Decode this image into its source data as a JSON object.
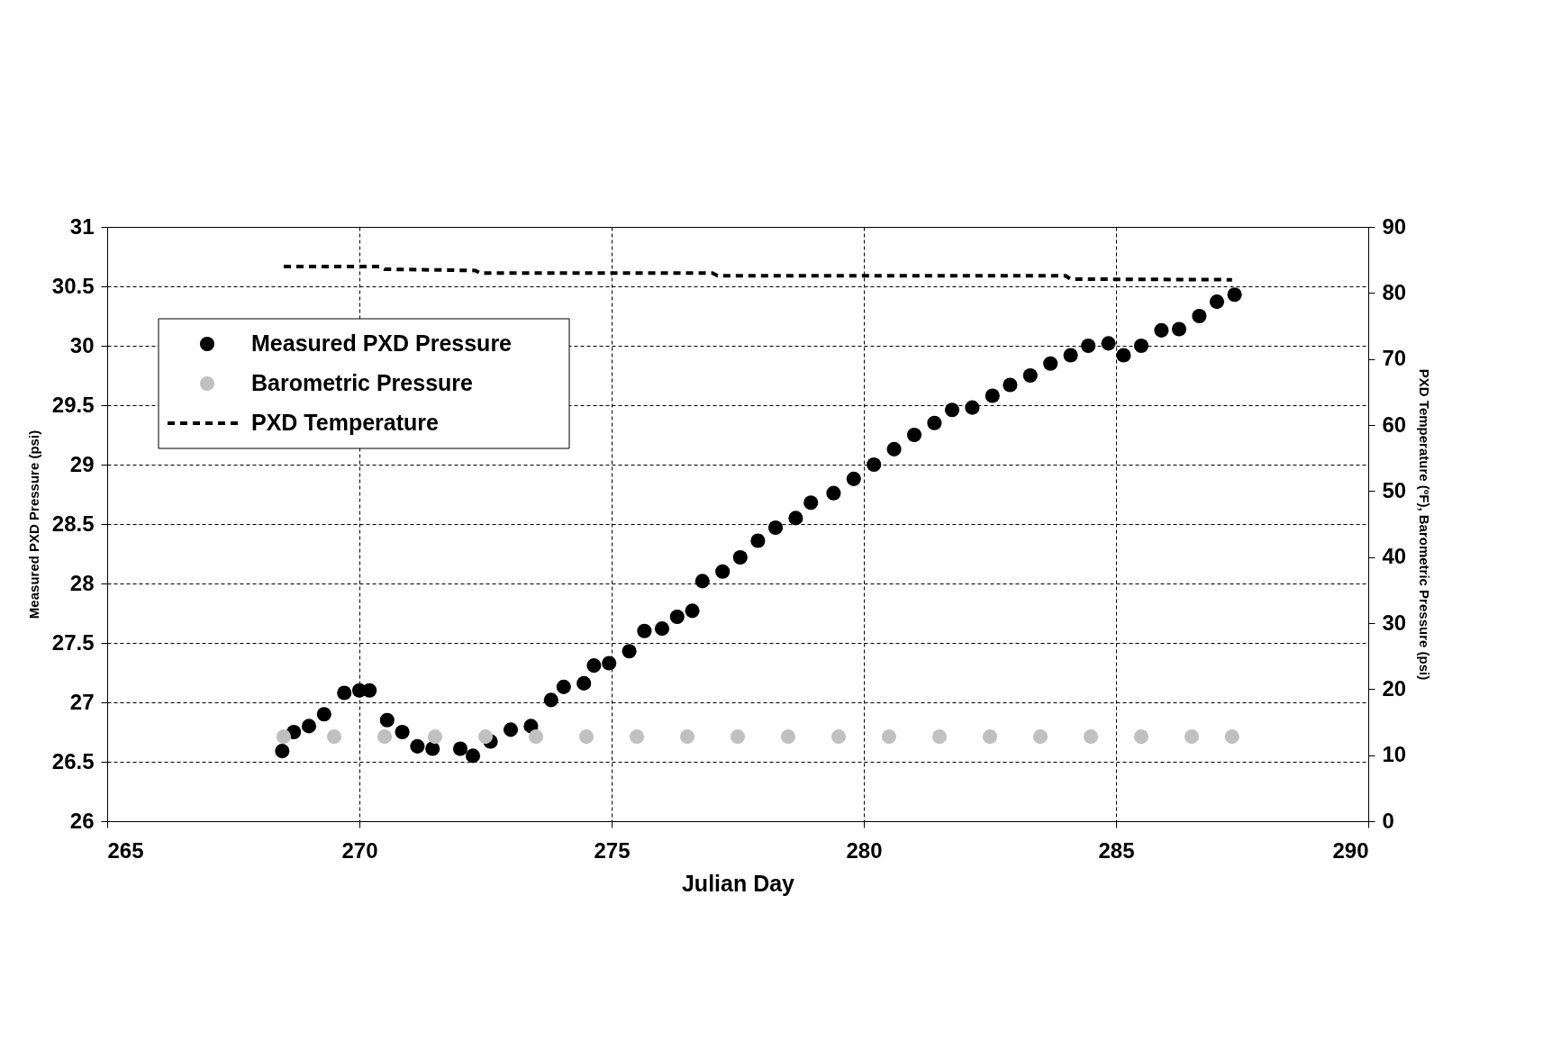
{
  "chart_data": {
    "type": "scatter",
    "xlabel": "Julian Day",
    "ylabel": "Measured PXD Pressure (psi)",
    "y2label": "PXD Temperature (ºF), Barometric Pressure (psi)",
    "xlim": [
      265,
      290
    ],
    "xticks": [
      265,
      270,
      275,
      280,
      285,
      290
    ],
    "ylim": [
      26,
      31
    ],
    "yticks": [
      26,
      26.5,
      27,
      27.5,
      28,
      28.5,
      29,
      29.5,
      30,
      30.5,
      31
    ],
    "y2lim": [
      0,
      90
    ],
    "y2ticks": [
      0,
      10,
      20,
      30,
      40,
      50,
      60,
      70,
      80,
      90
    ],
    "grid": true,
    "legend": "top left",
    "series": [
      {
        "name": "Measured PXD Pressure",
        "marker": "circle",
        "color": "#000000",
        "x": [
          268.47,
          268.7,
          269.0,
          269.3,
          269.7,
          270.0,
          270.2,
          270.55,
          270.85,
          271.15,
          271.45,
          272.0,
          272.25,
          272.6,
          273.0,
          273.4,
          273.8,
          274.05,
          274.45,
          274.65,
          274.95,
          275.35,
          275.65,
          276.0,
          276.3,
          276.6,
          276.8,
          277.2,
          277.55,
          277.9,
          278.25,
          278.65,
          278.95,
          279.4,
          279.8,
          280.2,
          280.6,
          281.0,
          281.4,
          281.75,
          282.15,
          282.55,
          282.9,
          283.3,
          283.7,
          284.1,
          284.45,
          284.85,
          285.15,
          285.5,
          285.9,
          286.25,
          286.65,
          287.0,
          287.35
        ],
        "values": [
          26.59,
          26.75,
          26.8,
          26.9,
          27.08,
          27.1,
          27.1,
          26.85,
          26.75,
          26.63,
          26.61,
          26.61,
          26.55,
          26.67,
          26.77,
          26.8,
          27.02,
          27.13,
          27.16,
          27.31,
          27.33,
          27.43,
          27.6,
          27.62,
          27.72,
          27.77,
          28.02,
          28.1,
          28.22,
          28.36,
          28.47,
          28.55,
          28.68,
          28.76,
          28.88,
          29.0,
          29.13,
          29.25,
          29.35,
          29.46,
          29.48,
          29.58,
          29.67,
          29.75,
          29.85,
          29.92,
          30.0,
          30.02,
          29.92,
          30.0,
          30.13,
          30.14,
          30.25,
          30.37,
          30.43
        ]
      },
      {
        "name": "Barometric Pressure",
        "marker": "circle",
        "axis": "y2",
        "color": "#c0c0c0",
        "x": [
          268.5,
          269.5,
          270.5,
          271.5,
          272.5,
          273.5,
          274.5,
          275.5,
          276.5,
          277.5,
          278.5,
          279.5,
          280.5,
          281.5,
          282.5,
          283.5,
          284.5,
          285.5,
          286.5,
          287.3
        ],
        "values": [
          12.8,
          12.8,
          12.8,
          12.8,
          12.8,
          12.8,
          12.8,
          12.8,
          12.8,
          12.8,
          12.8,
          12.8,
          12.8,
          12.8,
          12.8,
          12.8,
          12.8,
          12.8,
          12.8,
          12.8
        ]
      },
      {
        "name": "PXD Temperature",
        "type": "line",
        "line_style": "dashed",
        "axis": "y2",
        "color": "#000000",
        "x": [
          268.5,
          270.4,
          270.5,
          272.3,
          272.4,
          277.0,
          277.1,
          284.0,
          284.1,
          287.3
        ],
        "values": [
          84.0,
          84.0,
          83.6,
          83.4,
          83.0,
          83.0,
          82.6,
          82.6,
          82.1,
          82.0
        ]
      }
    ]
  }
}
